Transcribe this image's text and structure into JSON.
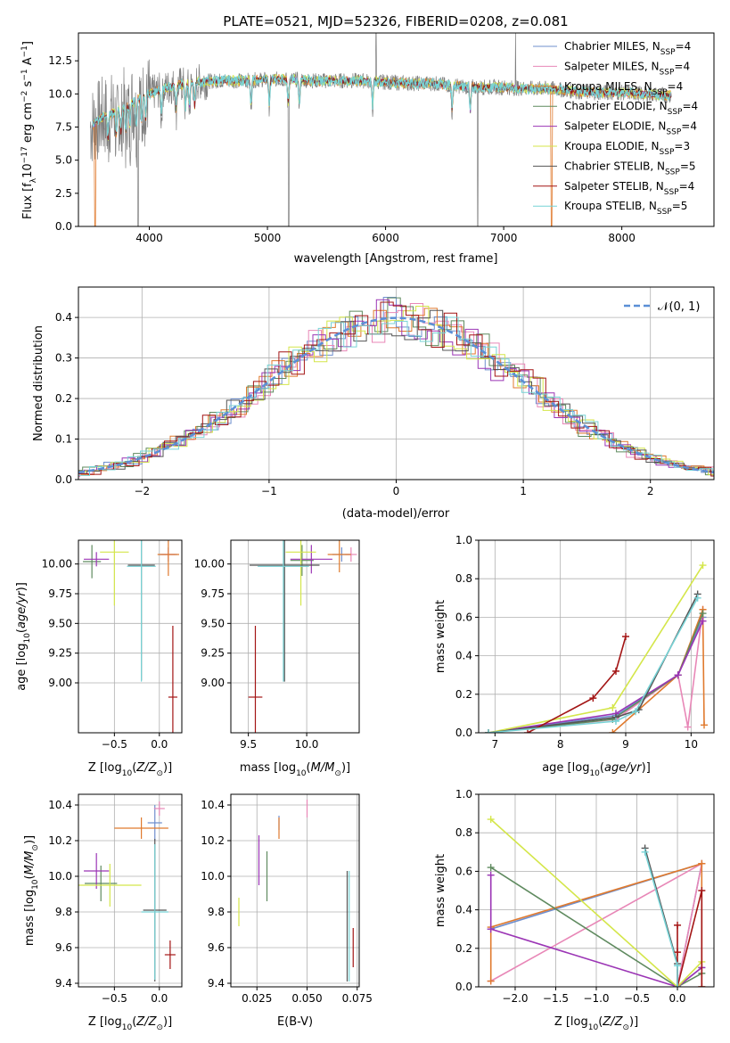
{
  "figure": {
    "title": "PLATE=0521, MJD=52326, FIBERID=0208, z=0.081"
  },
  "colors": {
    "Chabrier MILES": "#6f8fce",
    "Salpeter MILES": "#e887b7",
    "Kroupa MILES": "#e07a2e",
    "Chabrier ELODIE": "#5f8a5f",
    "Salpeter ELODIE": "#9b35b5",
    "Kroupa ELODIE": "#d4e64a",
    "Chabrier STELIB": "#555555",
    "Salpeter STELIB": "#a31515",
    "Kroupa STELIB": "#77d3d6"
  },
  "chart_data": [
    {
      "panel": "spectrum",
      "type": "line",
      "title": "PLATE=0521, MJD=52326, FIBERID=0208, z=0.081",
      "xlabel": "wavelength [Angstrom, rest frame]",
      "ylabel": "Flux [f_λ 10^-17 erg cm^-2 s^-1 A^-1]",
      "xlim": [
        3400,
        8780
      ],
      "ylim": [
        0,
        14.6
      ],
      "xticks": [
        "4000",
        "5000",
        "6000",
        "7000",
        "8000"
      ],
      "yticks": [
        "0.0",
        "2.5",
        "5.0",
        "7.5",
        "10.0",
        "12.5"
      ],
      "legend_position": "upper right",
      "legend": [
        {
          "label": "Chabrier MILES, N",
          "sub": "SSP",
          "suffix": "=4"
        },
        {
          "label": "Salpeter MILES, N",
          "sub": "SSP",
          "suffix": "=4"
        },
        {
          "label": "Kroupa MILES, N",
          "sub": "SSP",
          "suffix": "=4"
        },
        {
          "label": "Chabrier ELODIE, N",
          "sub": "SSP",
          "suffix": "=4"
        },
        {
          "label": "Salpeter ELODIE, N",
          "sub": "SSP",
          "suffix": "=4"
        },
        {
          "label": "Kroupa ELODIE, N",
          "sub": "SSP",
          "suffix": "=3"
        },
        {
          "label": "Chabrier STELIB, N",
          "sub": "SSP",
          "suffix": "=5"
        },
        {
          "label": "Salpeter STELIB, N",
          "sub": "SSP",
          "suffix": "=4"
        },
        {
          "label": "Kroupa STELIB, N",
          "sub": "SSP",
          "suffix": "=5"
        }
      ],
      "data_trend": {
        "x": [
          3500,
          3600,
          3700,
          3800,
          3900,
          4000,
          4200,
          4400,
          4600,
          4800,
          5000,
          5200,
          5400,
          5600,
          5800,
          6000,
          6200,
          6400,
          6600,
          6800,
          7000,
          7200,
          7400,
          7600,
          7800,
          8000,
          8200,
          8400
        ],
        "y": [
          7.5,
          8.2,
          8.6,
          9.0,
          9.6,
          10.0,
          10.6,
          10.9,
          11.0,
          11.0,
          11.1,
          11.1,
          11.0,
          11.0,
          11.0,
          10.9,
          10.8,
          10.8,
          10.6,
          10.5,
          10.5,
          10.4,
          10.4,
          10.2,
          10.1,
          10.1,
          10.0,
          9.9
        ]
      }
    },
    {
      "panel": "residuals",
      "type": "histogram",
      "xlabel": "(data-model)/error",
      "ylabel": "Normed distribution",
      "xlim": [
        -2.5,
        2.5
      ],
      "ylim": [
        0,
        0.475
      ],
      "xticks": [
        "−2",
        "−1",
        "0",
        "1",
        "2"
      ],
      "yticks": [
        "0.0",
        "0.1",
        "0.2",
        "0.3",
        "0.4"
      ],
      "reference_label": "𝒩(0, 1)",
      "bin_width": 0.1
    },
    {
      "panel": "age-vs-Z",
      "type": "errorbar",
      "xlabel": "Z [log10(Z/Z⊙)]",
      "ylabel": "age [log10(age/yr)]",
      "xlim": [
        -0.9,
        0.25
      ],
      "ylim": [
        8.58,
        10.2
      ],
      "xticks": [
        "−0.5",
        "0.0"
      ],
      "yticks": [
        "9.00",
        "9.25",
        "9.50",
        "9.75",
        "10.00"
      ],
      "points": [
        {
          "model": "Chabrier MILES",
          "x": 0.1,
          "xerr": 0.1,
          "y": 10.08,
          "yerr": 0.06
        },
        {
          "model": "Salpeter MILES",
          "x": 0.1,
          "xerr": 0.08,
          "y": 10.08,
          "yerr": 0.05
        },
        {
          "model": "Kroupa MILES",
          "x": 0.1,
          "xerr": 0.12,
          "y": 10.08,
          "yerr": 0.18
        },
        {
          "model": "Chabrier ELODIE",
          "x": -0.75,
          "xerr": 0.1,
          "y": 10.02,
          "yerr": 0.14
        },
        {
          "model": "Salpeter ELODIE",
          "x": -0.7,
          "xerr": 0.14,
          "y": 10.04,
          "yerr": 0.06
        },
        {
          "model": "Kroupa ELODIE",
          "x": -0.5,
          "xerr": 0.16,
          "y": 10.1,
          "yerr": 0.45
        },
        {
          "model": "Chabrier STELIB",
          "x": -0.2,
          "xerr": 0.15,
          "y": 9.99,
          "yerr": 0.97
        },
        {
          "model": "Salpeter STELIB",
          "x": 0.15,
          "xerr": 0.05,
          "y": 8.88,
          "yerr": 0.6
        },
        {
          "model": "Kroupa STELIB",
          "x": -0.2,
          "xerr": 0.16,
          "y": 9.98,
          "yerr": 0.97
        }
      ]
    },
    {
      "panel": "age-vs-mass",
      "type": "errorbar",
      "xlabel": "mass [log10(M/M⊙)]",
      "ylabel": "",
      "xlim": [
        9.35,
        10.45
      ],
      "ylim": [
        8.58,
        10.2
      ],
      "xticks": [
        "9.5",
        "10.0"
      ],
      "yticks": [
        "9.00",
        "9.25",
        "9.50",
        "9.75",
        "10.00"
      ],
      "points": [
        {
          "model": "Chabrier MILES",
          "x": 10.3,
          "xerr": 0.08,
          "y": 10.08,
          "yerr": 0.06
        },
        {
          "model": "Salpeter MILES",
          "x": 10.38,
          "xerr": 0.05,
          "y": 10.08,
          "yerr": 0.06
        },
        {
          "model": "Kroupa MILES",
          "x": 10.28,
          "xerr": 0.1,
          "y": 10.08,
          "yerr": 0.15
        },
        {
          "model": "Chabrier ELODIE",
          "x": 9.96,
          "xerr": 0.1,
          "y": 10.03,
          "yerr": 0.13
        },
        {
          "model": "Salpeter ELODIE",
          "x": 10.04,
          "xerr": 0.18,
          "y": 10.04,
          "yerr": 0.12
        },
        {
          "model": "Kroupa ELODIE",
          "x": 9.95,
          "xerr": 0.13,
          "y": 10.1,
          "yerr": 0.45
        },
        {
          "model": "Chabrier STELIB",
          "x": 9.81,
          "xerr": 0.3,
          "y": 9.99,
          "yerr": 0.98
        },
        {
          "model": "Salpeter STELIB",
          "x": 9.56,
          "xerr": 0.06,
          "y": 8.88,
          "yerr": 0.6
        },
        {
          "model": "Kroupa STELIB",
          "x": 9.8,
          "xerr": 0.22,
          "y": 9.98,
          "yerr": 0.97
        }
      ]
    },
    {
      "panel": "mass-weight-vs-age",
      "type": "line",
      "xlabel": "age [log10(age/yr)]",
      "ylabel": "mass weight",
      "xlim": [
        6.75,
        10.35
      ],
      "ylim": [
        0,
        1.0
      ],
      "xticks": [
        "7",
        "8",
        "9",
        "10"
      ],
      "yticks": [
        "0.0",
        "0.2",
        "0.4",
        "0.6",
        "0.8",
        "1.0"
      ],
      "series": [
        {
          "model": "Chabrier MILES",
          "x": [
            6.9,
            8.85,
            9.8,
            10.18
          ],
          "y": [
            0.0,
            0.09,
            0.3,
            0.6
          ]
        },
        {
          "model": "Salpeter MILES",
          "x": [
            6.9,
            8.85,
            9.8,
            9.95,
            10.18
          ],
          "y": [
            0.0,
            0.07,
            0.3,
            0.03,
            0.64
          ]
        },
        {
          "model": "Kroupa MILES",
          "x": [
            8.8,
            9.8,
            10.18,
            10.2
          ],
          "y": [
            0.0,
            0.3,
            0.64,
            0.04
          ]
        },
        {
          "model": "Chabrier ELODIE",
          "x": [
            6.9,
            8.8,
            9.8,
            10.18
          ],
          "y": [
            0.0,
            0.07,
            0.3,
            0.62
          ]
        },
        {
          "model": "Salpeter ELODIE",
          "x": [
            6.9,
            8.85,
            9.8,
            10.18
          ],
          "y": [
            0.0,
            0.1,
            0.3,
            0.58
          ]
        },
        {
          "model": "Kroupa ELODIE",
          "x": [
            6.9,
            8.8,
            10.18
          ],
          "y": [
            0.0,
            0.13,
            0.87
          ]
        },
        {
          "model": "Chabrier STELIB",
          "x": [
            6.9,
            8.85,
            9.2,
            10.1
          ],
          "y": [
            0.0,
            0.08,
            0.12,
            0.72
          ]
        },
        {
          "model": "Salpeter STELIB",
          "x": [
            7.5,
            8.5,
            8.85,
            9.0
          ],
          "y": [
            0.0,
            0.18,
            0.32,
            0.5
          ]
        },
        {
          "model": "Kroupa STELIB",
          "x": [
            6.9,
            8.85,
            9.15,
            10.1
          ],
          "y": [
            0.0,
            0.06,
            0.11,
            0.7
          ]
        }
      ]
    },
    {
      "panel": "mass-vs-Z",
      "type": "errorbar",
      "xlabel": "Z [log10(Z/Z⊙)]",
      "ylabel": "mass [log10(M/M⊙)]",
      "xlim": [
        -0.9,
        0.25
      ],
      "ylim": [
        9.38,
        10.46
      ],
      "xticks": [
        "−0.5",
        "0.0"
      ],
      "yticks": [
        "9.4",
        "9.6",
        "9.8",
        "10.0",
        "10.2",
        "10.4"
      ],
      "points": [
        {
          "model": "Chabrier MILES",
          "x": -0.05,
          "xerr": 0.08,
          "y": 10.3,
          "yerr": 0.1
        },
        {
          "model": "Salpeter MILES",
          "x": 0.0,
          "xerr": 0.06,
          "y": 10.38,
          "yerr": 0.04
        },
        {
          "model": "Kroupa MILES",
          "x": -0.2,
          "xerr": 0.3,
          "y": 10.27,
          "yerr": 0.06
        },
        {
          "model": "Chabrier ELODIE",
          "x": -0.65,
          "xerr": 0.18,
          "y": 9.96,
          "yerr": 0.1
        },
        {
          "model": "Salpeter ELODIE",
          "x": -0.7,
          "xerr": 0.14,
          "y": 10.03,
          "yerr": 0.1
        },
        {
          "model": "Kroupa ELODIE",
          "x": -0.55,
          "xerr": 0.35,
          "y": 9.95,
          "yerr": 0.12
        },
        {
          "model": "Chabrier STELIB",
          "x": -0.05,
          "xerr": 0.13,
          "y": 9.81,
          "yerr": 0.4
        },
        {
          "model": "Salpeter STELIB",
          "x": 0.12,
          "xerr": 0.06,
          "y": 9.56,
          "yerr": 0.08
        },
        {
          "model": "Kroupa STELIB",
          "x": -0.05,
          "xerr": 0.15,
          "y": 9.8,
          "yerr": 0.38
        }
      ]
    },
    {
      "panel": "mass-vs-EBV",
      "type": "errorbar",
      "xlabel": "E(B-V)",
      "ylabel": "",
      "xlim": [
        0.012,
        0.076
      ],
      "ylim": [
        9.38,
        10.46
      ],
      "xticks": [
        "0.025",
        "0.050",
        "0.075"
      ],
      "yticks": [
        "9.4",
        "9.6",
        "9.8",
        "10.0",
        "10.2",
        "10.4"
      ],
      "points": [
        {
          "model": "Chabrier MILES",
          "x": 0.036,
          "y": 10.3,
          "yerr": 0.04
        },
        {
          "model": "Salpeter MILES",
          "x": 0.05,
          "y": 10.38,
          "yerr": 0.05
        },
        {
          "model": "Kroupa MILES",
          "x": 0.036,
          "y": 10.27,
          "yerr": 0.06
        },
        {
          "model": "Chabrier ELODIE",
          "x": 0.03,
          "y": 10.0,
          "yerr": 0.14
        },
        {
          "model": "Salpeter ELODIE",
          "x": 0.026,
          "y": 10.09,
          "yerr": 0.14
        },
        {
          "model": "Kroupa ELODIE",
          "x": 0.016,
          "y": 9.8,
          "yerr": 0.08
        },
        {
          "model": "Chabrier STELIB",
          "x": 0.07,
          "y": 9.72,
          "yerr": 0.31
        },
        {
          "model": "Salpeter STELIB",
          "x": 0.073,
          "y": 9.6,
          "yerr": 0.11
        },
        {
          "model": "Kroupa STELIB",
          "x": 0.071,
          "y": 9.72,
          "yerr": 0.31
        }
      ]
    },
    {
      "panel": "mass-weight-vs-Z",
      "type": "line",
      "xlabel": "Z [log10(Z/Z⊙)]",
      "ylabel": "mass weight",
      "xlim": [
        -2.45,
        0.45
      ],
      "ylim": [
        0,
        1.0
      ],
      "xticks": [
        "−2.0",
        "−1.5",
        "−1.0",
        "−0.5",
        "0.0"
      ],
      "yticks": [
        "0.0",
        "0.2",
        "0.4",
        "0.6",
        "0.8",
        "1.0"
      ],
      "series": [
        {
          "model": "Chabrier MILES",
          "x": [
            -2.3,
            0.3,
            0.0,
            0.3
          ],
          "y": [
            0.3,
            0.64,
            0.0,
            0.1
          ]
        },
        {
          "model": "Salpeter MILES",
          "x": [
            -2.3,
            0.3,
            0.0
          ],
          "y": [
            0.03,
            0.64,
            0.0
          ]
        },
        {
          "model": "Kroupa MILES",
          "x": [
            -2.3,
            -2.3,
            0.3,
            0.3
          ],
          "y": [
            0.03,
            0.31,
            0.64,
            0.0
          ]
        },
        {
          "model": "Chabrier ELODIE",
          "x": [
            -2.3,
            0.0,
            0.3
          ],
          "y": [
            0.62,
            0.0,
            0.07
          ]
        },
        {
          "model": "Salpeter ELODIE",
          "x": [
            -2.3,
            -2.3,
            0.0,
            0.3
          ],
          "y": [
            0.58,
            0.3,
            0.0,
            0.1
          ]
        },
        {
          "model": "Kroupa ELODIE",
          "x": [
            -2.3,
            0.0,
            0.3
          ],
          "y": [
            0.87,
            0.0,
            0.13
          ]
        },
        {
          "model": "Chabrier STELIB",
          "x": [
            -0.4,
            0.0,
            0.0
          ],
          "y": [
            0.72,
            0.12,
            0.0
          ]
        },
        {
          "model": "Salpeter STELIB",
          "x": [
            0.0,
            0.0,
            0.0,
            0.3,
            0.3
          ],
          "y": [
            0.32,
            0.18,
            0.0,
            0.5,
            0.0
          ]
        },
        {
          "model": "Kroupa STELIB",
          "x": [
            -0.4,
            0.0,
            0.0
          ],
          "y": [
            0.7,
            0.11,
            0.0
          ]
        }
      ]
    }
  ]
}
